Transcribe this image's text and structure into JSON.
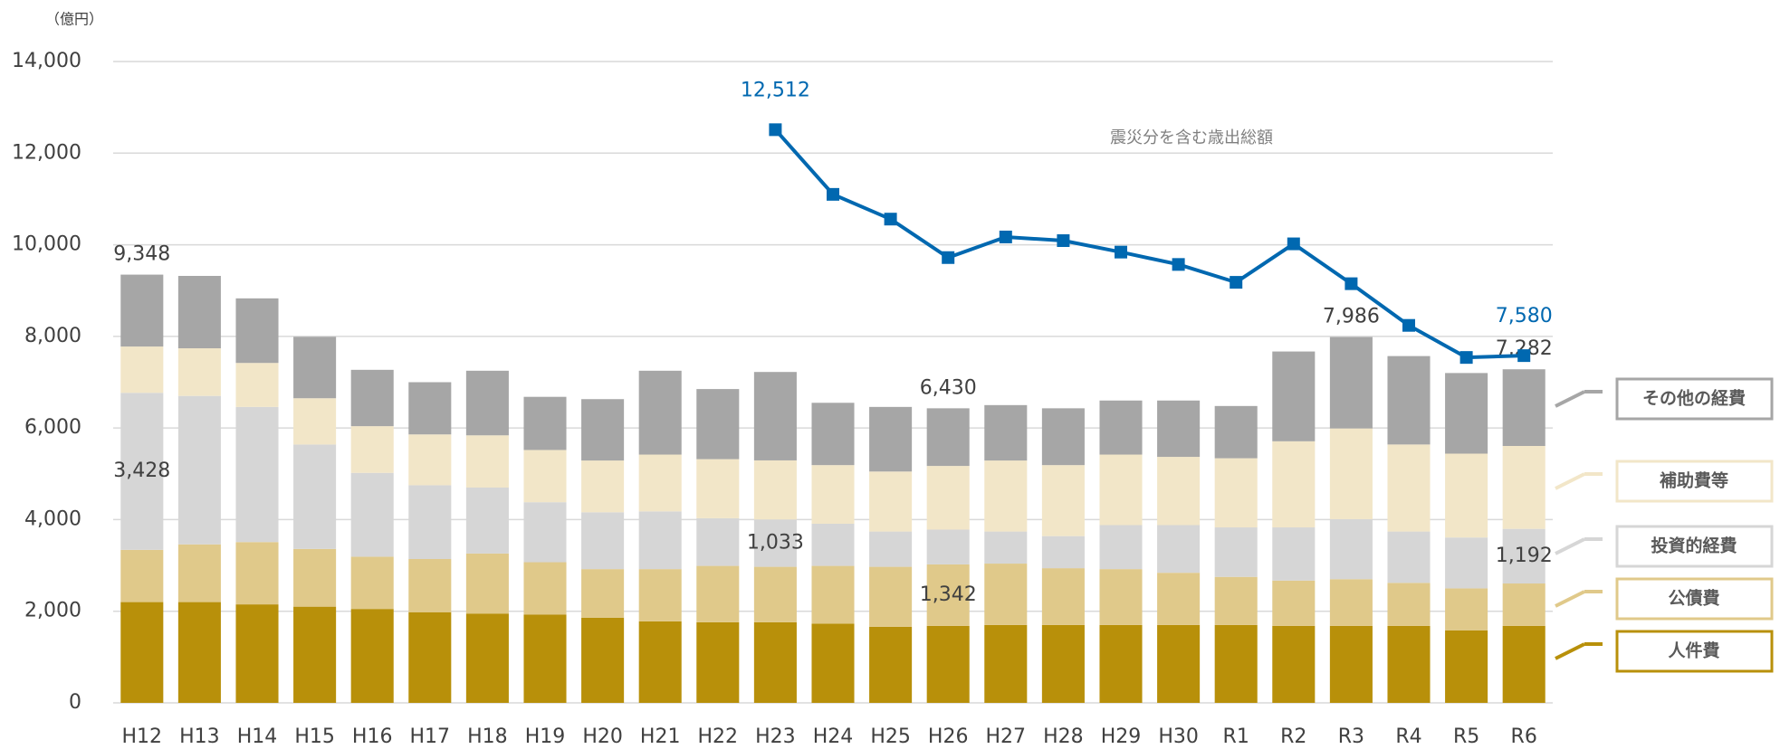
{
  "chart_data": {
    "type": "bar",
    "stacked": true,
    "unit_label": "（億円）",
    "categories": [
      "H12",
      "H13",
      "H14",
      "H15",
      "H16",
      "H17",
      "H18",
      "H19",
      "H20",
      "H21",
      "H22",
      "H23",
      "H24",
      "H25",
      "H26",
      "H27",
      "H28",
      "H29",
      "H30",
      "R1",
      "R2",
      "R3",
      "R4",
      "R5",
      "R6"
    ],
    "ylim": [
      0,
      14000
    ],
    "yticks": [
      0,
      {
        "value": 2000,
        "label": "2,000"
      },
      {
        "value": 4000,
        "label": "4,000"
      },
      {
        "value": 6000,
        "label": "6,000"
      },
      {
        "value": 8000,
        "label": "8,000"
      },
      {
        "value": 10000,
        "label": "10,000"
      },
      {
        "value": 12000,
        "label": "12,000"
      },
      {
        "value": 14000,
        "label": "14,000"
      }
    ],
    "grid": true,
    "series": [
      {
        "name": "人件費",
        "color": "#b8900a",
        "values": [
          2200,
          2200,
          2150,
          2100,
          2050,
          1980,
          1950,
          1930,
          1860,
          1780,
          1760,
          1760,
          1730,
          1660,
          1680,
          1700,
          1700,
          1700,
          1700,
          1700,
          1680,
          1680,
          1680,
          1580,
          1680
        ]
      },
      {
        "name": "公債費",
        "color": "#e0c98a",
        "values": [
          1140,
          1260,
          1360,
          1260,
          1140,
          1160,
          1310,
          1140,
          1060,
          1140,
          1230,
          1210,
          1260,
          1310,
          1342,
          1340,
          1240,
          1220,
          1140,
          1050,
          990,
          1020,
          940,
          920,
          926
        ],
        "value_labels": [
          null,
          null,
          null,
          null,
          null,
          null,
          null,
          null,
          null,
          null,
          null,
          null,
          null,
          null,
          "1,342",
          null,
          null,
          null,
          null,
          null,
          null,
          null,
          null,
          null,
          null
        ]
      },
      {
        "name": "投資的経費",
        "color": "#d6d6d6",
        "values": [
          3428,
          3240,
          2950,
          2280,
          1830,
          1610,
          1440,
          1310,
          1240,
          1260,
          1040,
          1033,
          920,
          770,
          760,
          700,
          700,
          960,
          1040,
          1080,
          1160,
          1310,
          1120,
          1110,
          1192
        ],
        "value_labels": [
          "3,428",
          null,
          null,
          null,
          null,
          null,
          null,
          null,
          null,
          null,
          null,
          "1,033",
          null,
          null,
          null,
          null,
          null,
          null,
          null,
          null,
          null,
          null,
          null,
          null,
          "1,192"
        ]
      },
      {
        "name": "補助費等",
        "color": "#f2e6c8",
        "values": [
          1010,
          1040,
          960,
          1010,
          1020,
          1110,
          1140,
          1140,
          1130,
          1240,
          1290,
          1290,
          1280,
          1310,
          1390,
          1550,
          1550,
          1540,
          1490,
          1510,
          1880,
          1980,
          1900,
          1830,
          1810
        ]
      },
      {
        "name": "その他の経費",
        "color": "#a6a6a6",
        "values": [
          1570,
          1580,
          1410,
          1340,
          1230,
          1140,
          1410,
          1160,
          1340,
          1830,
          1530,
          1930,
          1360,
          1410,
          1258,
          1210,
          1240,
          1180,
          1230,
          1140,
          1960,
          1996,
          1930,
          1760,
          1674
        ]
      },
      {
        "name": "震災分を含む歳出総額",
        "type": "line",
        "color": "#0068b0",
        "values": [
          null,
          null,
          null,
          null,
          null,
          null,
          null,
          null,
          null,
          null,
          null,
          12512,
          11100,
          10560,
          9720,
          10170,
          10090,
          9840,
          9570,
          9180,
          10020,
          9150,
          8240,
          7540,
          7580
        ],
        "value_labels": [
          null,
          null,
          null,
          null,
          null,
          null,
          null,
          null,
          null,
          null,
          null,
          "12,512",
          null,
          null,
          null,
          null,
          null,
          null,
          null,
          null,
          null,
          null,
          null,
          null,
          "7,580"
        ]
      }
    ],
    "total_labels": [
      "9,348",
      null,
      null,
      null,
      null,
      null,
      null,
      null,
      null,
      null,
      null,
      null,
      null,
      null,
      "6,430",
      null,
      null,
      null,
      null,
      null,
      null,
      "7,986",
      null,
      null,
      "7,282"
    ]
  }
}
